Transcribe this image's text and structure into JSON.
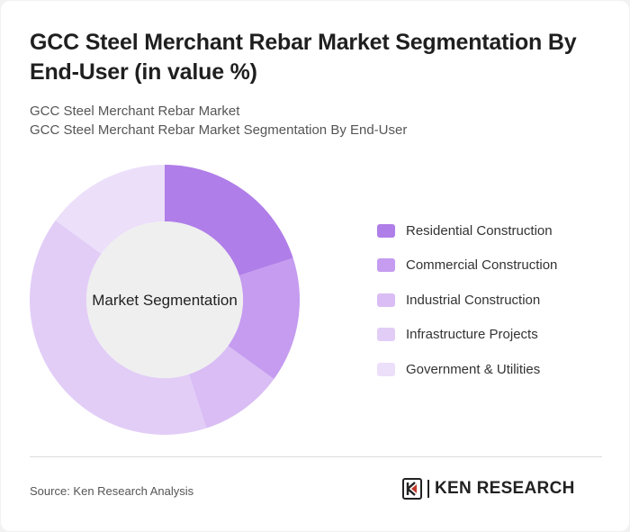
{
  "header": {
    "title": "GCC Steel Merchant Rebar Market Segmentation By End-User (in value %)",
    "subtitle_1": "GCC Steel Merchant Rebar Market",
    "subtitle_2": "GCC Steel Merchant Rebar Market Segmentation By End-User"
  },
  "chart_data": {
    "type": "pie",
    "donut": true,
    "center_label": "Market Segmentation",
    "legend_position": "right",
    "categories": [
      "Residential Construction",
      "Commercial Construction",
      "Industrial Construction",
      "Infrastructure Projects",
      "Government & Utilities"
    ],
    "values": [
      20,
      15,
      10,
      40,
      15
    ],
    "colors": [
      "#b07ee8",
      "#c59cf0",
      "#d9bdf4",
      "#e2cdf7",
      "#ecdffa"
    ]
  },
  "footer": {
    "source": "Source: Ken Research Analysis",
    "brand": "KEN RESEARCH",
    "logo_icon": "ken-research-logo-icon"
  }
}
